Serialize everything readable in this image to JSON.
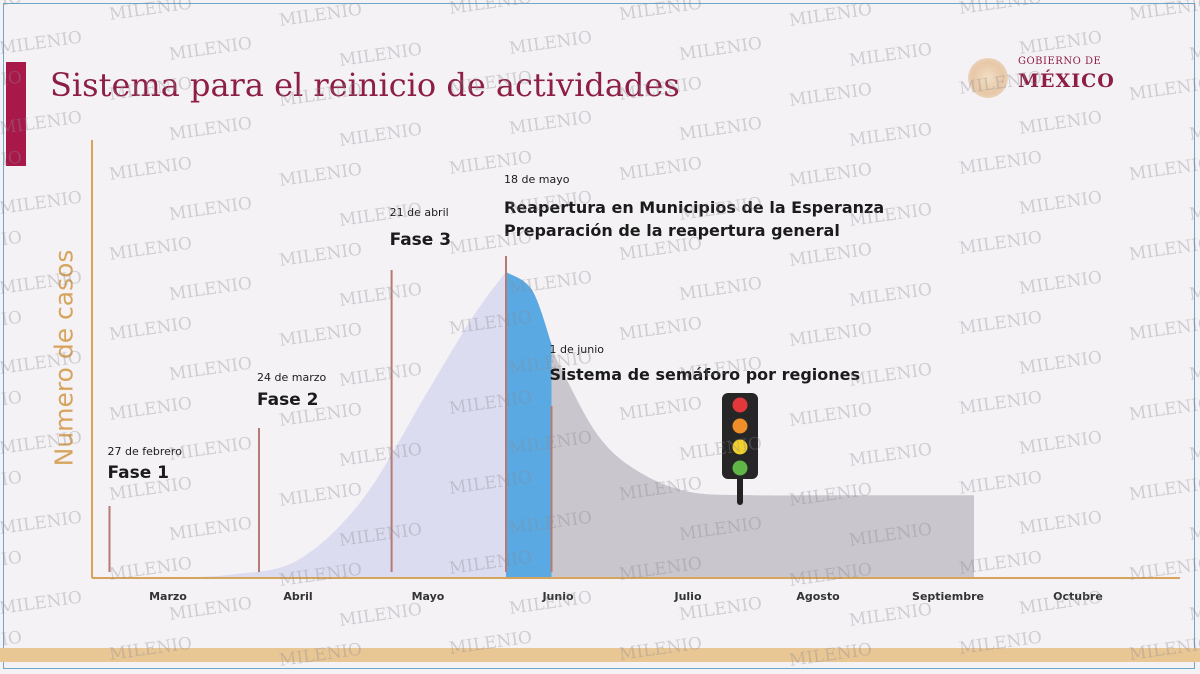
{
  "slide": {
    "title": "Sistema para el reinicio de actividades",
    "logo": {
      "line1": "GOBIERNO DE",
      "line2": "MÉXICO"
    },
    "watermark": "MILENIO"
  },
  "chart_data": {
    "type": "area",
    "ylabel": "Numero de casos",
    "xlabel": "",
    "categories": [
      "Marzo",
      "Abril",
      "Mayo",
      "Junio",
      "Julio",
      "Agosto",
      "Septiembre",
      "Octubre"
    ],
    "curve": {
      "x": [
        0,
        0.5,
        1.0,
        1.5,
        2.0,
        2.3,
        2.45,
        2.6,
        2.8,
        3.0,
        3.3,
        3.6,
        4.0,
        4.5,
        5.0,
        5.5,
        6.2
      ],
      "y": [
        0,
        1,
        5,
        22,
        52,
        70,
        78,
        85,
        80,
        60,
        40,
        30,
        24,
        23,
        23,
        23,
        23
      ],
      "regions": [
        {
          "name": "",
          "from": 0,
          "to": 2.6,
          "color": "#dcdcf0"
        },
        {
          "name": "",
          "from": 2.6,
          "to": 2.95,
          "color": "#5aa9e3"
        },
        {
          "name": "",
          "from": 2.95,
          "to": 6.2,
          "color": "#c9c6cd"
        }
      ]
    },
    "ylim": [
      0,
      100
    ],
    "annotations": [
      {
        "date": "27 de febrero",
        "label": "Fase 1",
        "label2": "",
        "x": -0.45
      },
      {
        "date": "24 de marzo",
        "label": "Fase 2",
        "label2": "",
        "x": 0.7
      },
      {
        "date": "21 de abril",
        "label": "Fase 3",
        "label2": "",
        "x": 1.72
      },
      {
        "date": "18 de mayo",
        "label": "Reapertura en Municipios de la Esperanza",
        "label2": "Preparación de la reapertura general",
        "x": 2.6
      },
      {
        "date": "1 de junio",
        "label": "Sistema de semáforo por regiones",
        "label2": "",
        "x": 2.95
      }
    ],
    "traffic_light": {
      "x": 4.4,
      "colors": [
        "#e2383b",
        "#ef8f2a",
        "#f2d02a",
        "#5fb548"
      ]
    },
    "colors": {
      "axis": "#d7a45e",
      "marker": "#b77a72",
      "text": "#1b1b1b"
    },
    "grid": false,
    "legend": "none"
  }
}
